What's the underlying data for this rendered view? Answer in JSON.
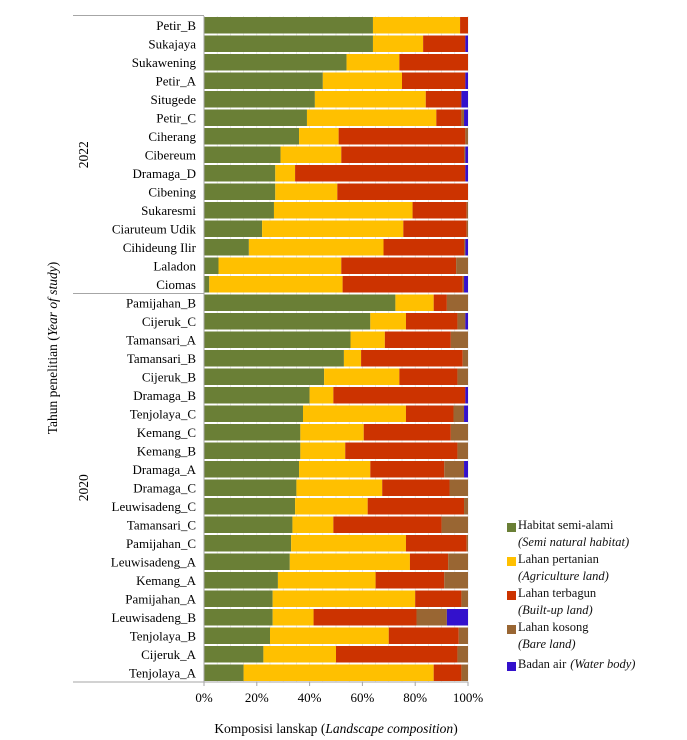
{
  "chart_data": {
    "type": "bar",
    "orientation": "horizontal",
    "stacked": "percent",
    "title": "",
    "xlabel": "Komposisi lanskap",
    "xlabel_en": "Landscape composition",
    "ylabel": "Tahun penelitian",
    "ylabel_en": "Year of study",
    "xlim": [
      0,
      100
    ],
    "xticks": [
      "0%",
      "20%",
      "40%",
      "60%",
      "80%",
      "100%"
    ],
    "legend_position": "right-bottom",
    "series": [
      {
        "key": "habitat",
        "name": "Habitat semi-alami",
        "name_en": "(Semi natural habitat)",
        "color": "#6a7f36"
      },
      {
        "key": "agri",
        "name": "Lahan pertanian",
        "name_en": "(Agriculture land)",
        "color": "#ffc000"
      },
      {
        "key": "built",
        "name": "Lahan terbagun",
        "name_en": "(Built-up land)",
        "color": "#cc3300"
      },
      {
        "key": "bare",
        "name": "Lahan kosong",
        "name_en": "(Bare land)",
        "color": "#996633"
      },
      {
        "key": "water",
        "name": "Badan air",
        "name_en": "(Water body)",
        "color": "#3311cc"
      }
    ],
    "groups": [
      {
        "year": "2022",
        "rows": [
          {
            "label": "Petir_B",
            "values": [
              64,
              33,
              3,
              0,
              0
            ]
          },
          {
            "label": "Sukajaya",
            "values": [
              64,
              19,
              16,
              0,
              1
            ]
          },
          {
            "label": "Sukawening",
            "values": [
              54,
              20,
              26,
              0,
              0
            ]
          },
          {
            "label": "Petir_A",
            "values": [
              45,
              30,
              24,
              0,
              1
            ]
          },
          {
            "label": "Situgede",
            "values": [
              42,
              42,
              13.5,
              0,
              2.5
            ]
          },
          {
            "label": "Petir_C",
            "values": [
              39,
              49,
              9.5,
              1,
              1.5
            ]
          },
          {
            "label": "Ciherang",
            "values": [
              36,
              15,
              48,
              1,
              0
            ]
          },
          {
            "label": "Cibereum",
            "values": [
              29,
              23,
              46.5,
              0.5,
              1
            ]
          },
          {
            "label": "Dramaga_D",
            "values": [
              27,
              7.5,
              64.5,
              0,
              1
            ]
          },
          {
            "label": "Cibening",
            "values": [
              27,
              23.5,
              49.5,
              0,
              0
            ]
          },
          {
            "label": "Sukaresmi",
            "values": [
              26.5,
              52.5,
              20.5,
              0.5,
              0
            ]
          },
          {
            "label": "Ciaruteum Udik",
            "values": [
              22,
              53.5,
              24,
              0.5,
              0
            ]
          },
          {
            "label": "Cihideung Ilir",
            "values": [
              17,
              51,
              30.5,
              0.5,
              1
            ]
          },
          {
            "label": "Laladon",
            "values": [
              5.5,
              46.5,
              43.5,
              4.5,
              0
            ]
          },
          {
            "label": "Ciomas",
            "values": [
              2,
              50.5,
              45.5,
              0.5,
              1.5
            ]
          }
        ]
      },
      {
        "year": "2020",
        "rows": [
          {
            "label": "Pamijahan_B",
            "values": [
              72.5,
              14.5,
              5,
              8,
              0
            ]
          },
          {
            "label": "Cijeruk_C",
            "values": [
              63,
              13.5,
              19.5,
              3,
              1
            ]
          },
          {
            "label": "Tamansari_A",
            "values": [
              55.5,
              13,
              25,
              6.5,
              0
            ]
          },
          {
            "label": "Tamansari_B",
            "values": [
              53,
              6.5,
              38.5,
              2,
              0
            ]
          },
          {
            "label": "Cijeruk_B",
            "values": [
              45.5,
              28.5,
              22,
              4,
              0
            ]
          },
          {
            "label": "Dramaga_B",
            "values": [
              40,
              9,
              50,
              0,
              1
            ]
          },
          {
            "label": "Tenjolaya_C",
            "values": [
              37.5,
              39,
              18,
              4,
              1.5
            ]
          },
          {
            "label": "Kemang_C",
            "values": [
              36.5,
              24,
              33,
              6.5,
              0
            ]
          },
          {
            "label": "Kemang_B",
            "values": [
              36.5,
              17,
              42.5,
              4,
              0
            ]
          },
          {
            "label": "Dramaga_A",
            "values": [
              36,
              27,
              28,
              7.5,
              1.5
            ]
          },
          {
            "label": "Dramaga_C",
            "values": [
              35,
              32.5,
              25.5,
              7,
              0
            ]
          },
          {
            "label": "Leuwisadeng_C",
            "values": [
              34.5,
              27.5,
              36.5,
              1.5,
              0
            ]
          },
          {
            "label": "Tamansari_C",
            "values": [
              33.5,
              15.5,
              41,
              10,
              0
            ]
          },
          {
            "label": "Pamijahan_C",
            "values": [
              33,
              43.5,
              23,
              0.5,
              0
            ]
          },
          {
            "label": "Leuwisadeng_A",
            "values": [
              32.5,
              45.5,
              14.5,
              7.5,
              0
            ]
          },
          {
            "label": "Kemang_A",
            "values": [
              28,
              37,
              26,
              9,
              0
            ]
          },
          {
            "label": "Pamijahan_A",
            "values": [
              26,
              54,
              17.5,
              2.5,
              0
            ]
          },
          {
            "label": "Leuwisadeng_B",
            "values": [
              26,
              15.5,
              39,
              11.5,
              8
            ]
          },
          {
            "label": "Tenjolaya_B",
            "values": [
              25,
              45,
              26.5,
              3.5,
              0
            ]
          },
          {
            "label": "Cijeruk_A",
            "values": [
              22.5,
              27.5,
              46,
              4,
              0
            ]
          },
          {
            "label": "Tenjolaya_A",
            "values": [
              15,
              72,
              10.5,
              2.5,
              0
            ]
          }
        ]
      }
    ]
  }
}
